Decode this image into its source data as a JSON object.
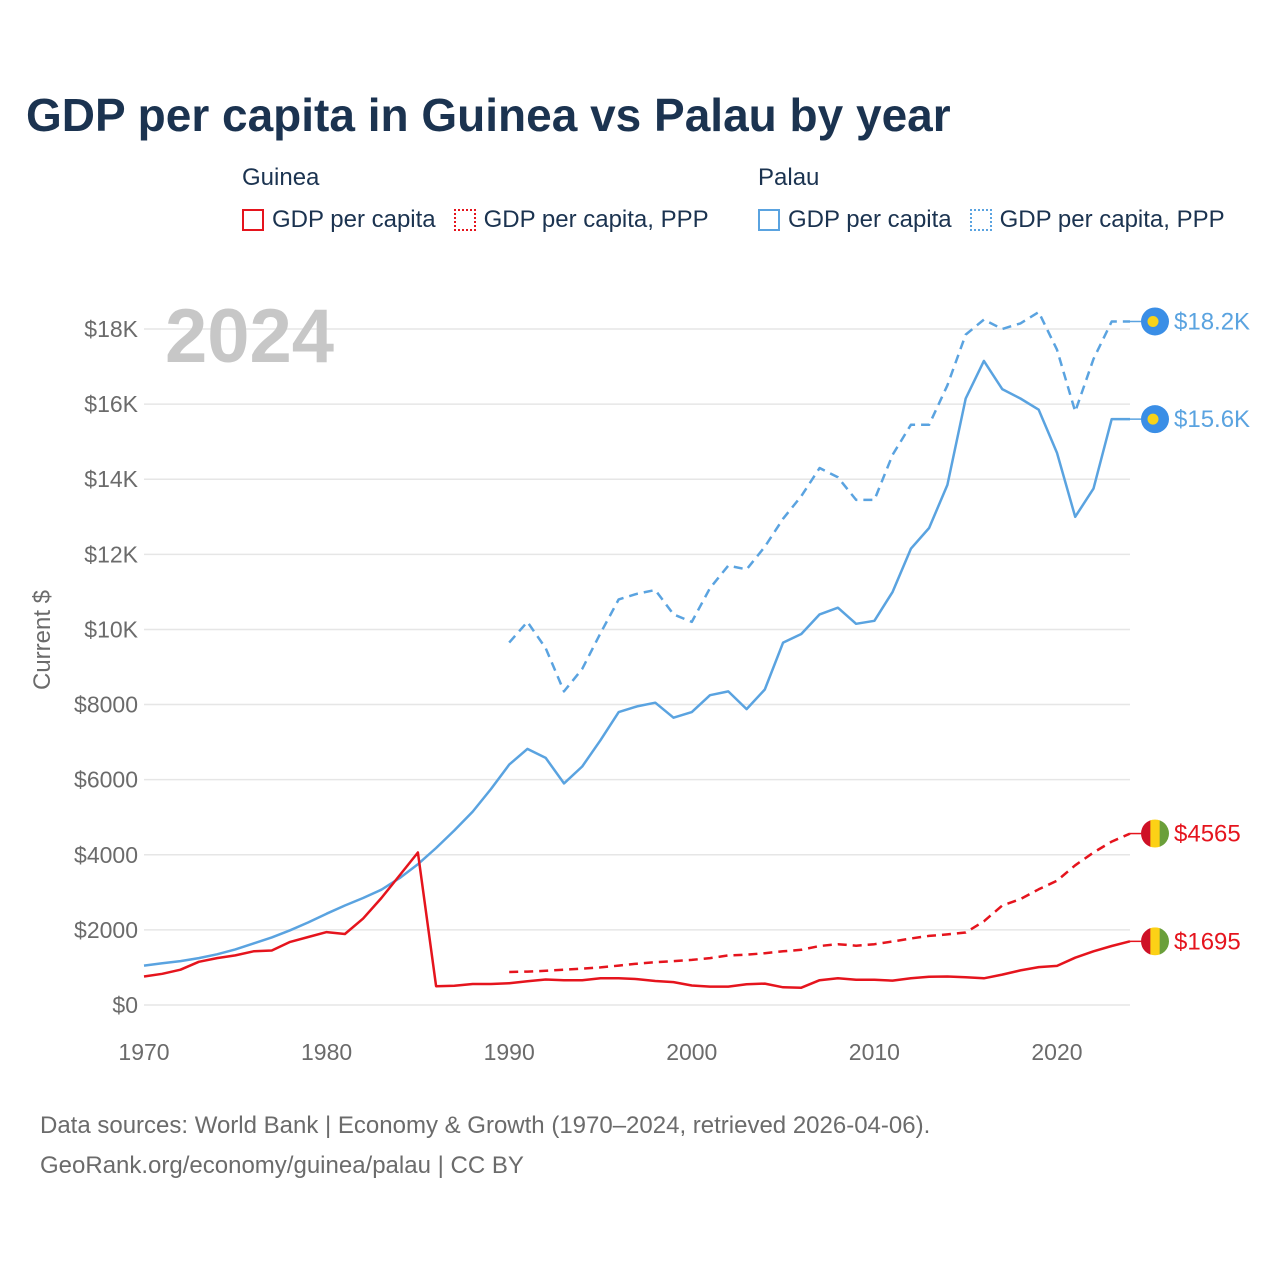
{
  "title": "GDP per capita in Guinea vs Palau by year",
  "legend": {
    "groups": [
      {
        "name": "Guinea",
        "items": [
          "GDP per capita",
          "GDP per capita, PPP"
        ]
      },
      {
        "name": "Palau",
        "items": [
          "GDP per capita",
          "GDP per capita, PPP"
        ]
      }
    ]
  },
  "footer": {
    "line1": "Data sources: World Bank | Economy & Growth (1970–2024, retrieved 2026-04-06).",
    "line2": "GeoRank.org/economy/guinea/palau | CC BY"
  },
  "colors": {
    "guinea": "#e5141d",
    "palau": "#5aa3e0",
    "grid": "#e6e6e6",
    "guinea_flag_red": "#ce1126",
    "guinea_flag_yellow": "#fcd116",
    "guinea_flag_green": "#6a9f3a",
    "palau_flag_blue": "#3a8ee6",
    "palau_flag_yellow": "#f7d21a"
  },
  "chart_data": {
    "type": "line",
    "year_label": "2024",
    "ylabel": "Current $",
    "xlim": [
      1970,
      2024
    ],
    "ylim": [
      0,
      18000
    ],
    "x_ticks": [
      1970,
      1980,
      1990,
      2000,
      2010,
      2020
    ],
    "y_ticks": [
      {
        "value": 0,
        "label": "$0"
      },
      {
        "value": 2000,
        "label": "$2000"
      },
      {
        "value": 4000,
        "label": "$4000"
      },
      {
        "value": 6000,
        "label": "$6000"
      },
      {
        "value": 8000,
        "label": "$8000"
      },
      {
        "value": 10000,
        "label": "$10K"
      },
      {
        "value": 12000,
        "label": "$12K"
      },
      {
        "value": 14000,
        "label": "$14K"
      },
      {
        "value": 16000,
        "label": "$16K"
      },
      {
        "value": 18000,
        "label": "$18K"
      }
    ],
    "series": [
      {
        "name": "Palau GDP per capita, PPP",
        "country": "palau",
        "style": "dashed",
        "end_label": "$18.2K",
        "x": [
          1990,
          1991,
          1992,
          1993,
          1994,
          1995,
          1996,
          1997,
          1998,
          1999,
          2000,
          2001,
          2002,
          2003,
          2004,
          2005,
          2006,
          2007,
          2008,
          2009,
          2010,
          2011,
          2012,
          2013,
          2014,
          2015,
          2016,
          2017,
          2018,
          2019,
          2020,
          2021,
          2022,
          2023,
          2024
        ],
        "values": [
          9650,
          10200,
          9500,
          8350,
          8950,
          9900,
          10800,
          10950,
          11050,
          10400,
          10200,
          11100,
          11700,
          11600,
          12200,
          12950,
          13550,
          14300,
          14050,
          13450,
          13450,
          14650,
          15450,
          15450,
          16500,
          17850,
          18250,
          18000,
          18150,
          18450,
          17450,
          15800,
          17200,
          18200,
          18200
        ]
      },
      {
        "name": "Palau GDP per capita",
        "country": "palau",
        "style": "solid",
        "end_label": "$15.6K",
        "x": [
          1970,
          1971,
          1972,
          1973,
          1974,
          1975,
          1976,
          1977,
          1978,
          1979,
          1980,
          1981,
          1982,
          1983,
          1984,
          1985,
          1986,
          1987,
          1988,
          1989,
          1990,
          1991,
          1992,
          1993,
          1994,
          1995,
          1996,
          1997,
          1998,
          1999,
          2000,
          2001,
          2002,
          2003,
          2004,
          2005,
          2006,
          2007,
          2008,
          2009,
          2010,
          2011,
          2012,
          2013,
          2014,
          2015,
          2016,
          2017,
          2018,
          2019,
          2020,
          2021,
          2022,
          2023,
          2024
        ],
        "values": [
          1050,
          1110,
          1170,
          1250,
          1350,
          1480,
          1640,
          1800,
          1990,
          2200,
          2430,
          2650,
          2850,
          3070,
          3380,
          3750,
          4180,
          4650,
          5150,
          5750,
          6400,
          6820,
          6580,
          5900,
          6350,
          7050,
          7800,
          7950,
          8050,
          7650,
          7800,
          8250,
          8350,
          7880,
          8400,
          9650,
          9880,
          10400,
          10580,
          10150,
          10230,
          11000,
          12150,
          12700,
          13850,
          16150,
          17150,
          16400,
          16150,
          15850,
          14700,
          13000,
          13750,
          15600,
          15600
        ]
      },
      {
        "name": "Guinea GDP per capita, PPP",
        "country": "guinea",
        "style": "dashed",
        "end_label": "$4565",
        "x": [
          1990,
          1991,
          1992,
          1993,
          1994,
          1995,
          1996,
          1997,
          1998,
          1999,
          2000,
          2001,
          2002,
          2003,
          2004,
          2005,
          2006,
          2007,
          2008,
          2009,
          2010,
          2011,
          2012,
          2013,
          2014,
          2015,
          2016,
          2017,
          2018,
          2019,
          2020,
          2021,
          2022,
          2023,
          2024
        ],
        "values": [
          880,
          890,
          910,
          940,
          970,
          1000,
          1050,
          1100,
          1140,
          1170,
          1200,
          1250,
          1320,
          1340,
          1380,
          1430,
          1470,
          1570,
          1620,
          1580,
          1620,
          1690,
          1770,
          1840,
          1880,
          1930,
          2230,
          2650,
          2820,
          3080,
          3310,
          3720,
          4060,
          4350,
          4565
        ]
      },
      {
        "name": "Guinea GDP per capita",
        "country": "guinea",
        "style": "solid",
        "end_label": "$1695",
        "x": [
          1970,
          1971,
          1972,
          1973,
          1974,
          1975,
          1976,
          1977,
          1978,
          1979,
          1980,
          1981,
          1982,
          1983,
          1984,
          1985,
          1986,
          1987,
          1988,
          1989,
          1990,
          1991,
          1992,
          1993,
          1994,
          1995,
          1996,
          1997,
          1998,
          1999,
          2000,
          2001,
          2002,
          2003,
          2004,
          2005,
          2006,
          2007,
          2008,
          2009,
          2010,
          2011,
          2012,
          2013,
          2014,
          2015,
          2016,
          2017,
          2018,
          2019,
          2020,
          2021,
          2022,
          2023,
          2024
        ],
        "values": [
          760,
          830,
          940,
          1150,
          1250,
          1320,
          1430,
          1450,
          1680,
          1810,
          1940,
          1890,
          2300,
          2850,
          3450,
          4060,
          500,
          510,
          560,
          560,
          580,
          630,
          680,
          660,
          660,
          710,
          710,
          690,
          640,
          610,
          520,
          490,
          490,
          550,
          570,
          470,
          460,
          660,
          710,
          670,
          670,
          650,
          710,
          750,
          760,
          740,
          710,
          810,
          920,
          1010,
          1040,
          1260,
          1430,
          1570,
          1695
        ]
      }
    ]
  }
}
